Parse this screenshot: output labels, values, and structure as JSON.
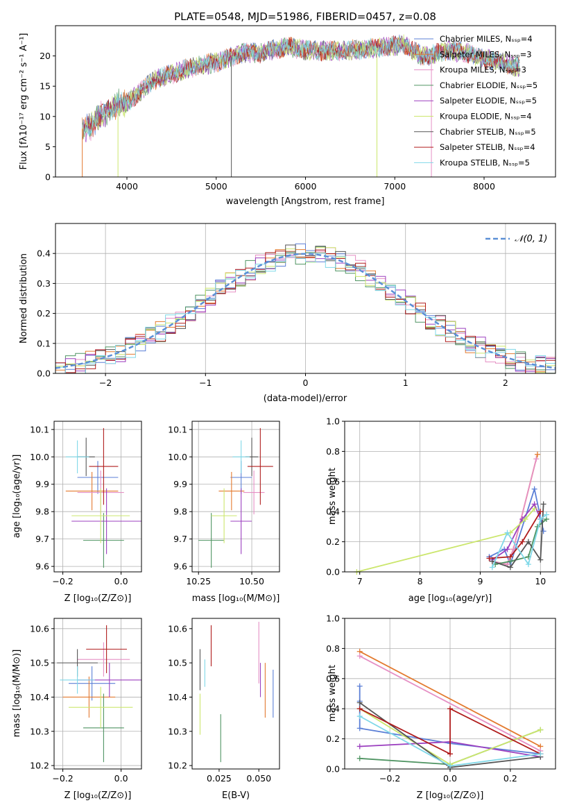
{
  "colors": {
    "grid": "#b0b0b0",
    "normal_curve": "#5b8fd6",
    "series_palette": [
      "#5b7fd6",
      "#e37a2f",
      "#e58fc4",
      "#4f9462",
      "#9b3fbf",
      "#cbe66c",
      "#555555",
      "#b01c1c",
      "#7fd8e8"
    ]
  },
  "chart_data": [
    {
      "id": "spectrum",
      "type": "line",
      "title": "PLATE=0548, MJD=51986, FIBERID=0457, z=0.08",
      "xlabel": "wavelength [Angstrom, rest frame]",
      "ylabel": "Flux [fλ10⁻¹⁷ erg cm⁻² s⁻¹ A⁻¹]",
      "xlim": [
        3200,
        8800
      ],
      "ylim": [
        0,
        25
      ],
      "xticks": [
        4000,
        5000,
        6000,
        7000,
        8000
      ],
      "yticks": [
        0,
        5,
        10,
        15,
        20
      ],
      "continuum_x": [
        3500,
        3600,
        3700,
        3800,
        3900,
        4000,
        4100,
        4300,
        4500,
        4700,
        5000,
        5300,
        5500,
        5800,
        6000,
        6300,
        6600,
        6900,
        7100,
        7300,
        7400,
        7600,
        7800,
        8000,
        8200,
        8300,
        8400
      ],
      "continuum_y": [
        7.5,
        8.5,
        10,
        11,
        12,
        12.2,
        13.5,
        16,
        17,
        18,
        19,
        20.5,
        20.5,
        21.5,
        21,
        20.8,
        21,
        21.5,
        22,
        20,
        20,
        21,
        20.5,
        19.5,
        19,
        18.5,
        18
      ],
      "dips_x": [
        5170,
        6800,
        7410
      ],
      "legend": [
        "Chabrier MILES, Nₛₛₚ=4",
        "Salpeter MILES, Nₛₛₚ=3",
        "Kroupa MILES, Nₛₛₚ=3",
        "Chabrier ELODIE, Nₛₛₚ=5",
        "Salpeter ELODIE, Nₛₛₚ=5",
        "Kroupa ELODIE, Nₛₛₚ=4",
        "Chabrier STELIB, Nₛₛₚ=5",
        "Salpeter STELIB, Nₛₛₚ=4",
        "Kroupa STELIB, Nₛₛₚ=5"
      ],
      "legend_colors": [
        "#5b7fd6",
        "#e37a2f",
        "#e58fc4",
        "#4f9462",
        "#9b3fbf",
        "#cbe66c",
        "#555555",
        "#b01c1c",
        "#7fd8e8"
      ],
      "legend_position": "right"
    },
    {
      "id": "residuals",
      "type": "line",
      "xlabel": "(data-model)/error",
      "ylabel": "Normed distribution",
      "xlim": [
        -2.5,
        2.5
      ],
      "ylim": [
        0,
        0.5
      ],
      "xticks": [
        -2,
        -1,
        0,
        1,
        2
      ],
      "xtick_labels": [
        "−2",
        "−1",
        "0",
        "1",
        "2"
      ],
      "yticks": [
        0.0,
        0.1,
        0.2,
        0.3,
        0.4
      ],
      "ytick_labels": [
        "0.0",
        "0.1",
        "0.2",
        "0.3",
        "0.4"
      ],
      "grid": true,
      "legend": "𝒩(0, 1)",
      "legend_position": "top-right",
      "normal_curve": {
        "mean": 0,
        "std": 1
      }
    },
    {
      "id": "age_vs_Z",
      "type": "scatter",
      "xlabel": "Z [log₁₀(Z/Z⊙)]",
      "ylabel": "age  [log₁₀(age/yr)]",
      "xlim": [
        -0.23,
        0.07
      ],
      "ylim": [
        9.58,
        10.13
      ],
      "xticks": [
        -0.2,
        0.0
      ],
      "xtick_labels": [
        "−0.2",
        "0.0"
      ],
      "yticks": [
        9.6,
        9.7,
        9.8,
        9.9,
        10.0,
        10.1
      ],
      "ytick_labels": [
        "9.6",
        "9.7",
        "9.8",
        "9.9",
        "10.0",
        "10.1"
      ],
      "grid": true,
      "points": [
        {
          "x": -0.08,
          "y": 9.925,
          "xerr": 0.07,
          "yerr": 0.06
        },
        {
          "x": -0.1,
          "y": 9.875,
          "xerr": 0.09,
          "yerr": 0.07
        },
        {
          "x": -0.07,
          "y": 9.87,
          "xerr": 0.08,
          "yerr": 0.08
        },
        {
          "x": -0.06,
          "y": 9.695,
          "xerr": 0.07,
          "yerr": 0.1
        },
        {
          "x": -0.05,
          "y": 9.765,
          "xerr": 0.12,
          "yerr": 0.12
        },
        {
          "x": -0.07,
          "y": 9.785,
          "xerr": 0.1,
          "yerr": 0.1
        },
        {
          "x": -0.12,
          "y": 10.0,
          "xerr": 0.03,
          "yerr": 0.07
        },
        {
          "x": -0.06,
          "y": 9.965,
          "xerr": 0.05,
          "yerr": 0.14
        },
        {
          "x": -0.15,
          "y": 10.0,
          "xerr": 0.04,
          "yerr": 0.06
        }
      ]
    },
    {
      "id": "age_vs_mass",
      "type": "scatter",
      "xlabel": "mass [log₁₀(M/M⊙)]",
      "xlim": [
        10.22,
        10.63
      ],
      "ylim": [
        9.58,
        10.13
      ],
      "xticks": [
        10.25,
        10.5
      ],
      "xtick_labels": [
        "10.25",
        "10.50"
      ],
      "yticks": [
        9.6,
        9.7,
        9.8,
        9.9,
        10.0,
        10.1
      ],
      "ytick_labels": [
        "9.6",
        "9.7",
        "9.8",
        "9.9",
        "10.0",
        "10.1"
      ],
      "grid": true,
      "points": [
        {
          "x": 10.45,
          "y": 9.925,
          "xerr": 0.05,
          "yerr": 0.06
        },
        {
          "x": 10.405,
          "y": 9.875,
          "xerr": 0.06,
          "yerr": 0.07
        },
        {
          "x": 10.51,
          "y": 9.87,
          "xerr": 0.05,
          "yerr": 0.08
        },
        {
          "x": 10.31,
          "y": 9.695,
          "xerr": 0.06,
          "yerr": 0.1
        },
        {
          "x": 10.45,
          "y": 9.765,
          "xerr": 0.05,
          "yerr": 0.12
        },
        {
          "x": 10.37,
          "y": 9.785,
          "xerr": 0.06,
          "yerr": 0.1
        },
        {
          "x": 10.5,
          "y": 10.0,
          "xerr": 0.03,
          "yerr": 0.07
        },
        {
          "x": 10.54,
          "y": 9.965,
          "xerr": 0.06,
          "yerr": 0.14
        },
        {
          "x": 10.45,
          "y": 10.0,
          "xerr": 0.04,
          "yerr": 0.06
        }
      ]
    },
    {
      "id": "weight_vs_age",
      "type": "line",
      "xlabel": "age  [log₁₀(age/yr)]",
      "ylabel": "mass weight",
      "xlim": [
        6.75,
        10.25
      ],
      "ylim": [
        0,
        1
      ],
      "xticks": [
        7,
        8,
        9,
        10
      ],
      "xtick_labels": [
        "7",
        "8",
        "9",
        "10"
      ],
      "yticks": [
        0.0,
        0.2,
        0.4,
        0.6,
        0.8,
        1.0
      ],
      "ytick_labels": [
        "0.0",
        "0.2",
        "0.4",
        "0.6",
        "0.8",
        "1.0"
      ],
      "grid": true,
      "series": [
        {
          "x": [
            9.15,
            9.4,
            9.5,
            9.9,
            10.05
          ],
          "y": [
            0.1,
            0.15,
            0.05,
            0.55,
            0.27
          ]
        },
        {
          "x": [
            9.2,
            9.45,
            9.55,
            9.95
          ],
          "y": [
            0.07,
            0.05,
            0.15,
            0.78
          ]
        },
        {
          "x": [
            9.2,
            9.45,
            9.55,
            9.93
          ],
          "y": [
            0.07,
            0.05,
            0.15,
            0.75
          ]
        },
        {
          "x": [
            9.25,
            9.5,
            9.8,
            9.95,
            10.1
          ],
          "y": [
            0.05,
            0.07,
            0.1,
            0.3,
            0.35
          ]
        },
        {
          "x": [
            9.2,
            9.45,
            9.7,
            9.9,
            10.0
          ],
          "y": [
            0.08,
            0.15,
            0.35,
            0.45,
            0.35
          ]
        },
        {
          "x": [
            6.95,
            9.5,
            9.75,
            9.9
          ],
          "y": [
            0.0,
            0.26,
            0.35,
            0.42
          ]
        },
        {
          "x": [
            9.2,
            9.5,
            9.8,
            10.0,
            10.05
          ],
          "y": [
            0.07,
            0.03,
            0.2,
            0.08,
            0.45
          ]
        },
        {
          "x": [
            9.15,
            9.5,
            9.7,
            10.0
          ],
          "y": [
            0.09,
            0.1,
            0.2,
            0.4
          ]
        },
        {
          "x": [
            9.2,
            9.45,
            9.8,
            10.0,
            10.1
          ],
          "y": [
            0.03,
            0.26,
            0.05,
            0.35,
            0.38
          ]
        }
      ]
    },
    {
      "id": "mass_vs_Z",
      "type": "scatter",
      "xlabel": "Z [log₁₀(Z/Z⊙)]",
      "ylabel": "mass [log₁₀(M/M⊙)]",
      "xlim": [
        -0.23,
        0.07
      ],
      "ylim": [
        10.19,
        10.63
      ],
      "xticks": [
        -0.2,
        0.0
      ],
      "xtick_labels": [
        "−0.2",
        "0.0"
      ],
      "yticks": [
        10.2,
        10.3,
        10.4,
        10.5,
        10.6
      ],
      "ytick_labels": [
        "10.2",
        "10.3",
        "10.4",
        "10.5",
        "10.6"
      ],
      "grid": true,
      "points": [
        {
          "x": -0.1,
          "y": 10.44,
          "xerr": 0.08,
          "yerr": 0.05
        },
        {
          "x": -0.11,
          "y": 10.4,
          "xerr": 0.09,
          "yerr": 0.06
        },
        {
          "x": -0.06,
          "y": 10.51,
          "xerr": 0.09,
          "yerr": 0.05
        },
        {
          "x": -0.06,
          "y": 10.31,
          "xerr": 0.07,
          "yerr": 0.1
        },
        {
          "x": -0.04,
          "y": 10.45,
          "xerr": 0.11,
          "yerr": 0.05
        },
        {
          "x": -0.07,
          "y": 10.37,
          "xerr": 0.11,
          "yerr": 0.06
        },
        {
          "x": -0.15,
          "y": 10.5,
          "xerr": 0.07,
          "yerr": 0.04
        },
        {
          "x": -0.05,
          "y": 10.54,
          "xerr": 0.07,
          "yerr": 0.07
        },
        {
          "x": -0.15,
          "y": 10.45,
          "xerr": 0.06,
          "yerr": 0.04
        }
      ]
    },
    {
      "id": "mass_vs_ebv",
      "type": "scatter",
      "xlabel": "E(B-V)",
      "xlim": [
        0.008,
        0.063
      ],
      "ylim": [
        10.19,
        10.63
      ],
      "xticks": [
        0.025,
        0.05
      ],
      "xtick_labels": [
        "0.025",
        "0.050"
      ],
      "yticks": [
        10.2,
        10.3,
        10.4,
        10.5,
        10.6
      ],
      "ytick_labels": [
        "10.2",
        "10.3",
        "10.4",
        "10.5",
        "10.6"
      ],
      "points": [
        {
          "x": 0.059,
          "y": 10.41,
          "yerr": 0.07
        },
        {
          "x": 0.054,
          "y": 10.42,
          "yerr": 0.08
        },
        {
          "x": 0.05,
          "y": 10.53,
          "yerr": 0.09
        },
        {
          "x": 0.026,
          "y": 10.28,
          "yerr": 0.07
        },
        {
          "x": 0.051,
          "y": 10.45,
          "yerr": 0.05
        },
        {
          "x": 0.013,
          "y": 10.35,
          "yerr": 0.06
        },
        {
          "x": 0.013,
          "y": 10.48,
          "yerr": 0.06
        },
        {
          "x": 0.02,
          "y": 10.55,
          "yerr": 0.06
        },
        {
          "x": 0.016,
          "y": 10.47,
          "yerr": 0.04
        }
      ]
    },
    {
      "id": "weight_vs_Z",
      "type": "line",
      "xlabel": "Z [log₁₀(Z/Z⊙)]",
      "ylabel": "mass weight",
      "xlim": [
        -0.35,
        0.35
      ],
      "ylim": [
        0,
        1
      ],
      "xticks": [
        -0.2,
        0.0,
        0.2
      ],
      "xtick_labels": [
        "−0.2",
        "0.0",
        "0.2"
      ],
      "yticks": [
        0.0,
        0.2,
        0.4,
        0.6,
        0.8,
        1.0
      ],
      "ytick_labels": [
        "0.0",
        "0.2",
        "0.4",
        "0.6",
        "0.8",
        "1.0"
      ],
      "grid": true,
      "series": [
        {
          "x": [
            -0.3,
            -0.3,
            -0.3,
            0.0,
            0.3
          ],
          "y": [
            0.55,
            0.45,
            0.27,
            0.17,
            0.1
          ]
        },
        {
          "x": [
            -0.3,
            0.3
          ],
          "y": [
            0.78,
            0.15
          ]
        },
        {
          "x": [
            -0.3,
            0.3
          ],
          "y": [
            0.75,
            0.12
          ]
        },
        {
          "x": [
            -0.3,
            0.0,
            0.3
          ],
          "y": [
            0.07,
            0.03,
            0.26
          ]
        },
        {
          "x": [
            -0.3,
            0.0,
            0.3
          ],
          "y": [
            0.15,
            0.18,
            0.08
          ]
        },
        {
          "x": [
            -0.3,
            0.0,
            0.3
          ],
          "y": [
            0.4,
            0.03,
            0.26
          ]
        },
        {
          "x": [
            -0.3,
            0.0,
            0.3
          ],
          "y": [
            0.44,
            0.01,
            0.08
          ]
        },
        {
          "x": [
            -0.3,
            0.0,
            0.0,
            0.3
          ],
          "y": [
            0.4,
            0.1,
            0.4,
            0.1
          ]
        },
        {
          "x": [
            -0.3,
            0.0,
            0.3
          ],
          "y": [
            0.35,
            0.02,
            0.1
          ]
        }
      ]
    }
  ]
}
